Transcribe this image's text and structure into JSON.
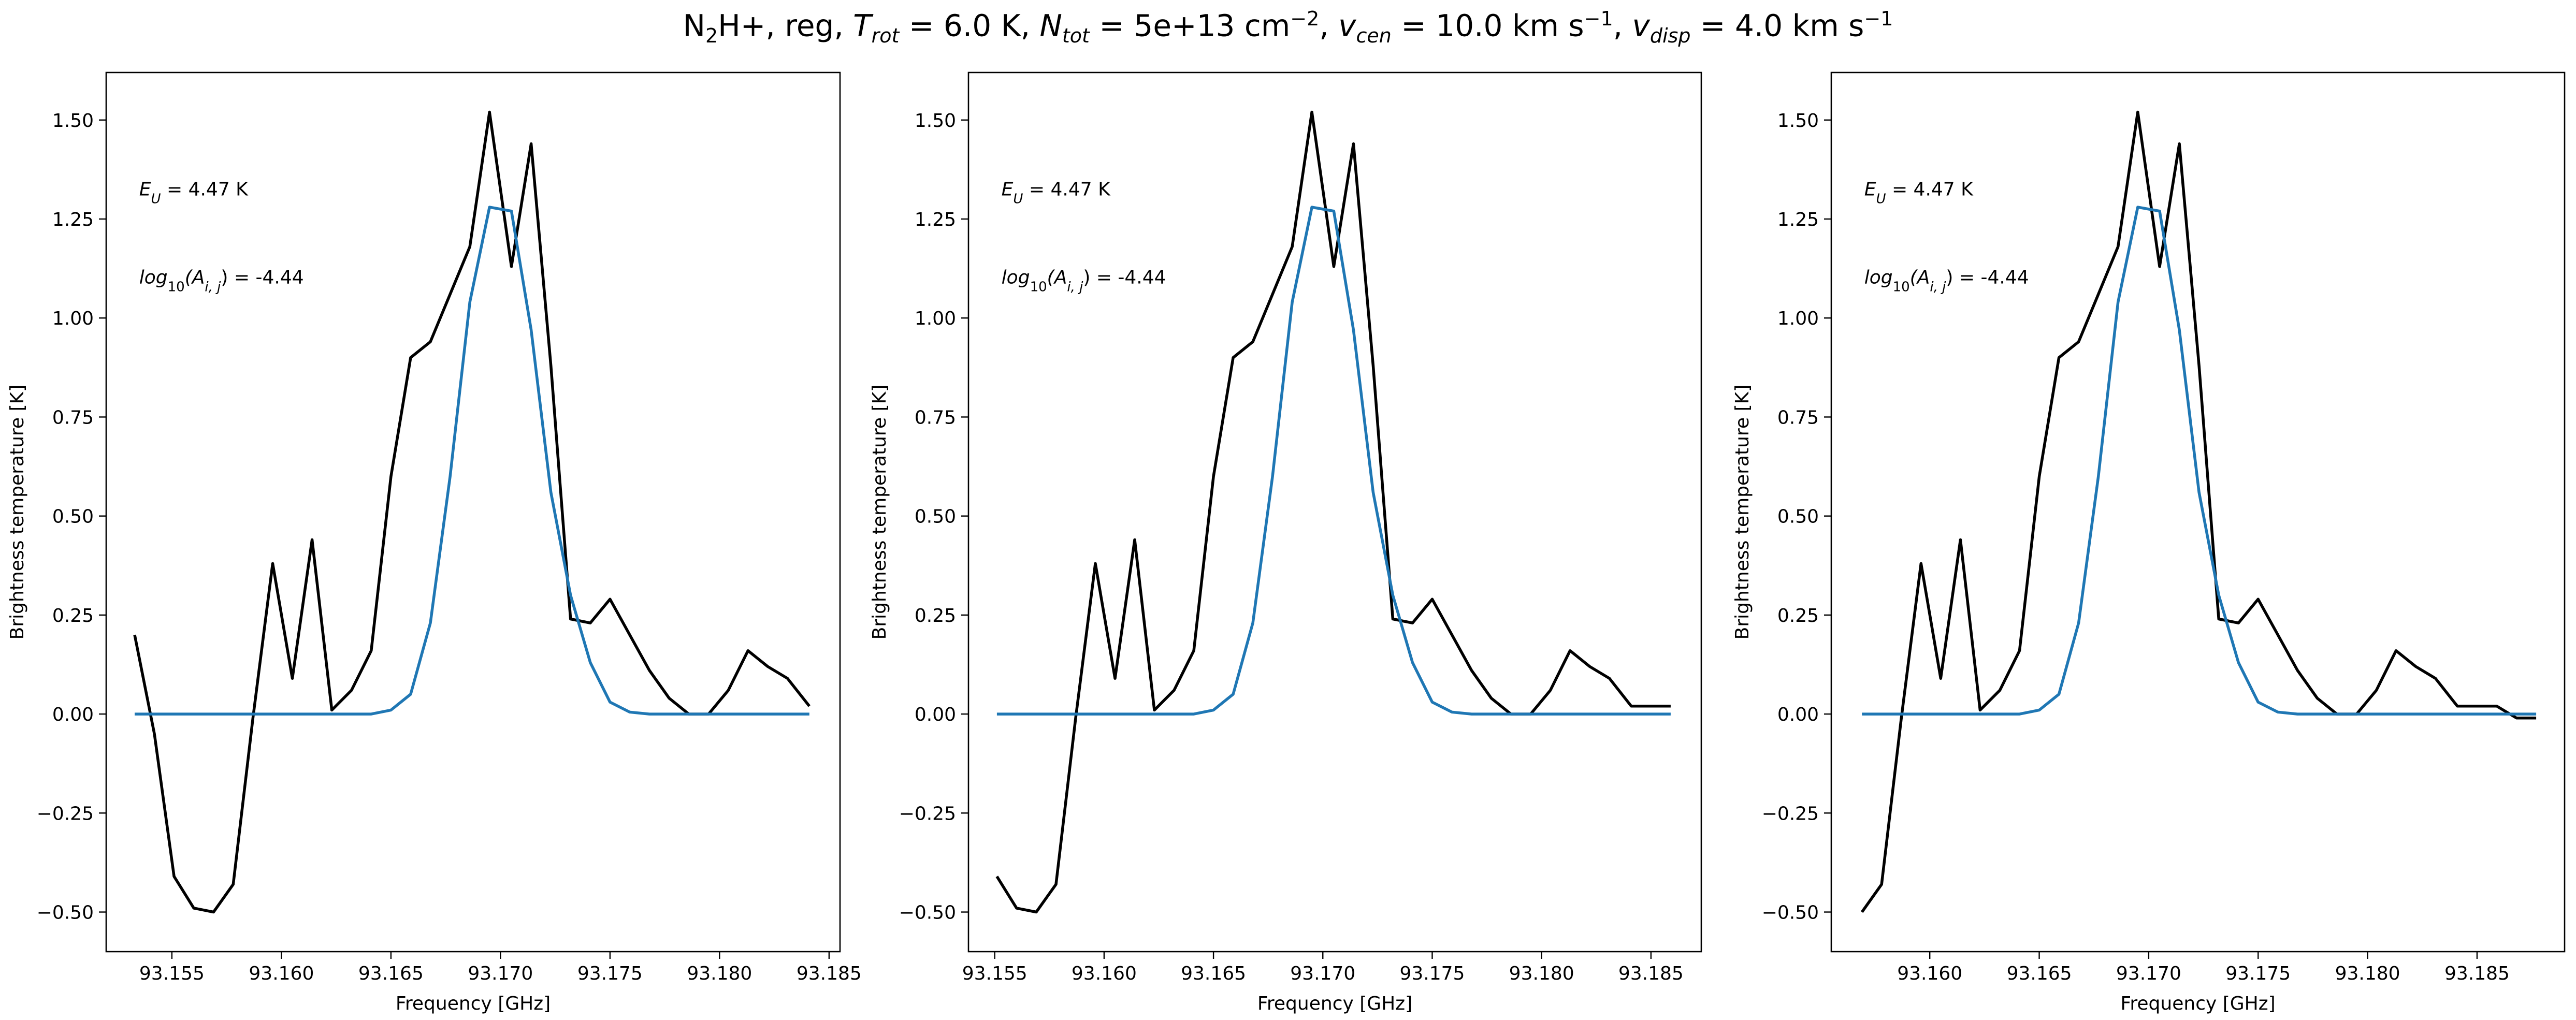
{
  "figure": {
    "title": {
      "molecule_main": "N",
      "molecule_sub": "2",
      "molecule_rest": "H+",
      "sep1": ", reg, ",
      "trot_sym": "T",
      "trot_sub": "rot",
      "trot_value": " =  6.0 K, ",
      "ntot_sym": "N",
      "ntot_sub": "tot",
      "ntot_value": " =  5e+13 cm",
      "ntot_exp": "−2",
      "vcen_sep": ", ",
      "vcen_sym": "v",
      "vcen_sub": "cen",
      "vcen_value": " =  10.0 km s",
      "vcen_exp": "−1",
      "vdisp_sep": ", ",
      "vdisp_sym": "v",
      "vdisp_sub": "disp",
      "vdisp_value": " =  4.0 km s",
      "vdisp_exp": "−1"
    }
  },
  "colors": {
    "observed": "#000000",
    "model": "#1f77b4"
  },
  "chart_data": [
    {
      "type": "line",
      "xlabel": "Frequency [GHz]",
      "ylabel": "Brightness temperature [K]",
      "xlim": [
        93.152,
        93.1855
      ],
      "ylim": [
        -0.6,
        1.62
      ],
      "xticks": [
        93.155,
        93.16,
        93.165,
        93.17,
        93.175,
        93.18,
        93.185
      ],
      "xtick_labels": [
        "93.155",
        "93.160",
        "93.165",
        "93.170",
        "93.175",
        "93.180",
        "93.185"
      ],
      "yticks": [
        -0.5,
        -0.25,
        0.0,
        0.25,
        0.5,
        0.75,
        1.0,
        1.25,
        1.5
      ],
      "ytick_labels": [
        "−0.50",
        "−0.25",
        "0.00",
        "0.25",
        "0.50",
        "0.75",
        "1.00",
        "1.25",
        "1.50"
      ],
      "annotations": [
        {
          "sym": "E",
          "sub": "U",
          "value": " = 4.47 K",
          "pos": [
            0.045,
            0.86
          ]
        },
        {
          "sym": "log",
          "sub": "10",
          "mid": "(A",
          "sub2": "i, j",
          "value": ") = -4.44",
          "pos": [
            0.045,
            0.76
          ]
        }
      ],
      "series": [
        {
          "role": "observed",
          "x": [
            93.1533,
            93.1542,
            93.1551,
            93.156,
            93.1569,
            93.1578,
            93.1587,
            93.1596,
            93.1605,
            93.1614,
            93.1623,
            93.1632,
            93.1641,
            93.165,
            93.1659,
            93.1668,
            93.1677,
            93.1686,
            93.1695,
            93.1705,
            93.1714,
            93.1723,
            93.1732,
            93.1741,
            93.175,
            93.1759,
            93.1768,
            93.1777,
            93.1786,
            93.1795,
            93.1804,
            93.1813,
            93.1822,
            93.1831,
            93.1841
          ],
          "y": [
            0.2,
            -0.05,
            -0.41,
            -0.49,
            -0.5,
            -0.43,
            -0.01,
            0.38,
            0.09,
            0.44,
            0.01,
            0.06,
            0.16,
            0.6,
            0.9,
            0.94,
            1.06,
            1.18,
            1.52,
            1.13,
            1.44,
            0.88,
            0.24,
            0.23,
            0.29,
            0.2,
            0.11,
            0.04,
            0.0,
            0.0,
            0.06,
            0.16,
            0.12,
            0.09,
            0.02
          ]
        },
        {
          "role": "model",
          "x": [
            93.1533,
            93.1542,
            93.1551,
            93.156,
            93.1569,
            93.1578,
            93.1587,
            93.1596,
            93.1605,
            93.1614,
            93.1623,
            93.1632,
            93.1641,
            93.165,
            93.1659,
            93.1668,
            93.1677,
            93.1686,
            93.1695,
            93.1705,
            93.1714,
            93.1723,
            93.1732,
            93.1741,
            93.175,
            93.1759,
            93.1768,
            93.1777,
            93.1786,
            93.1795,
            93.1804,
            93.1813,
            93.1822,
            93.1831,
            93.1841
          ],
          "y": [
            0,
            0,
            0,
            0,
            0,
            0,
            0,
            0,
            0,
            0,
            0,
            0,
            0,
            0.01,
            0.05,
            0.23,
            0.6,
            1.04,
            1.28,
            1.27,
            0.97,
            0.56,
            0.3,
            0.13,
            0.03,
            0.005,
            0,
            0,
            0,
            0,
            0,
            0,
            0,
            0,
            0
          ]
        }
      ]
    },
    {
      "type": "line",
      "xlabel": "Frequency [GHz]",
      "ylabel": "Brightness temperature [K]",
      "xlim": [
        93.1538,
        93.1873
      ],
      "ylim": [
        -0.6,
        1.62
      ],
      "xticks": [
        93.155,
        93.16,
        93.165,
        93.17,
        93.175,
        93.18,
        93.185
      ],
      "xtick_labels": [
        "93.155",
        "93.160",
        "93.165",
        "93.170",
        "93.175",
        "93.180",
        "93.185"
      ],
      "yticks": [
        -0.5,
        -0.25,
        0.0,
        0.25,
        0.5,
        0.75,
        1.0,
        1.25,
        1.5
      ],
      "ytick_labels": [
        "−0.50",
        "−0.25",
        "0.00",
        "0.25",
        "0.50",
        "0.75",
        "1.00",
        "1.25",
        "1.50"
      ],
      "annotations": [
        {
          "sym": "E",
          "sub": "U",
          "value": " = 4.47 K",
          "pos": [
            0.045,
            0.86
          ]
        },
        {
          "sym": "log",
          "sub": "10",
          "mid": "(A",
          "sub2": "i, j",
          "value": ") = -4.44",
          "pos": [
            0.045,
            0.76
          ]
        }
      ],
      "series": [
        {
          "role": "observed",
          "x": [
            93.1551,
            93.156,
            93.1569,
            93.1578,
            93.1587,
            93.1596,
            93.1605,
            93.1614,
            93.1623,
            93.1632,
            93.1641,
            93.165,
            93.1659,
            93.1668,
            93.1677,
            93.1686,
            93.1695,
            93.1705,
            93.1714,
            93.1723,
            93.1732,
            93.1741,
            93.175,
            93.1759,
            93.1768,
            93.1777,
            93.1786,
            93.1795,
            93.1804,
            93.1813,
            93.1822,
            93.1831,
            93.1841,
            93.185,
            93.1859
          ],
          "y": [
            -0.41,
            -0.49,
            -0.5,
            -0.43,
            -0.01,
            0.38,
            0.09,
            0.44,
            0.01,
            0.06,
            0.16,
            0.6,
            0.9,
            0.94,
            1.06,
            1.18,
            1.52,
            1.13,
            1.44,
            0.88,
            0.24,
            0.23,
            0.29,
            0.2,
            0.11,
            0.04,
            0.0,
            0.0,
            0.06,
            0.16,
            0.12,
            0.09,
            0.02,
            0.02,
            0.02
          ]
        },
        {
          "role": "model",
          "x": [
            93.1551,
            93.156,
            93.1569,
            93.1578,
            93.1587,
            93.1596,
            93.1605,
            93.1614,
            93.1623,
            93.1632,
            93.1641,
            93.165,
            93.1659,
            93.1668,
            93.1677,
            93.1686,
            93.1695,
            93.1705,
            93.1714,
            93.1723,
            93.1732,
            93.1741,
            93.175,
            93.1759,
            93.1768,
            93.1777,
            93.1786,
            93.1795,
            93.1804,
            93.1813,
            93.1822,
            93.1831,
            93.1841,
            93.185,
            93.1859
          ],
          "y": [
            0,
            0,
            0,
            0,
            0,
            0,
            0,
            0,
            0,
            0,
            0,
            0.01,
            0.05,
            0.23,
            0.6,
            1.04,
            1.28,
            1.27,
            0.97,
            0.56,
            0.3,
            0.13,
            0.03,
            0.005,
            0,
            0,
            0,
            0,
            0,
            0,
            0,
            0,
            0,
            0,
            0
          ]
        }
      ]
    },
    {
      "type": "line",
      "xlabel": "Frequency [GHz]",
      "ylabel": "Brightness temperature [K]",
      "xlim": [
        93.1555,
        93.189
      ],
      "ylim": [
        -0.6,
        1.62
      ],
      "xticks": [
        93.16,
        93.165,
        93.17,
        93.175,
        93.18,
        93.185
      ],
      "xtick_labels": [
        "93.160",
        "93.165",
        "93.170",
        "93.175",
        "93.180",
        "93.185"
      ],
      "yticks": [
        -0.5,
        -0.25,
        0.0,
        0.25,
        0.5,
        0.75,
        1.0,
        1.25,
        1.5
      ],
      "ytick_labels": [
        "−0.50",
        "−0.25",
        "0.00",
        "0.25",
        "0.50",
        "0.75",
        "1.00",
        "1.25",
        "1.50"
      ],
      "annotations": [
        {
          "sym": "E",
          "sub": "U",
          "value": " = 4.47 K",
          "pos": [
            0.045,
            0.86
          ]
        },
        {
          "sym": "log",
          "sub": "10",
          "mid": "(A",
          "sub2": "i, j",
          "value": ") = -4.44",
          "pos": [
            0.045,
            0.76
          ]
        }
      ],
      "series": [
        {
          "role": "observed",
          "x": [
            93.1569,
            93.1578,
            93.1587,
            93.1596,
            93.1605,
            93.1614,
            93.1623,
            93.1632,
            93.1641,
            93.165,
            93.1659,
            93.1668,
            93.1677,
            93.1686,
            93.1695,
            93.1705,
            93.1714,
            93.1723,
            93.1732,
            93.1741,
            93.175,
            93.1759,
            93.1768,
            93.1777,
            93.1786,
            93.1795,
            93.1804,
            93.1813,
            93.1822,
            93.1831,
            93.1841,
            93.185,
            93.1859,
            93.1868,
            93.1877
          ],
          "y": [
            -0.5,
            -0.43,
            -0.01,
            0.38,
            0.09,
            0.44,
            0.01,
            0.06,
            0.16,
            0.6,
            0.9,
            0.94,
            1.06,
            1.18,
            1.52,
            1.13,
            1.44,
            0.88,
            0.24,
            0.23,
            0.29,
            0.2,
            0.11,
            0.04,
            0.0,
            0.0,
            0.06,
            0.16,
            0.12,
            0.09,
            0.02,
            0.02,
            0.02,
            -0.01,
            -0.01
          ]
        },
        {
          "role": "model",
          "x": [
            93.1569,
            93.1578,
            93.1587,
            93.1596,
            93.1605,
            93.1614,
            93.1623,
            93.1632,
            93.1641,
            93.165,
            93.1659,
            93.1668,
            93.1677,
            93.1686,
            93.1695,
            93.1705,
            93.1714,
            93.1723,
            93.1732,
            93.1741,
            93.175,
            93.1759,
            93.1768,
            93.1777,
            93.1786,
            93.1795,
            93.1804,
            93.1813,
            93.1822,
            93.1831,
            93.1841,
            93.185,
            93.1859,
            93.1868,
            93.1877
          ],
          "y": [
            0,
            0,
            0,
            0,
            0,
            0,
            0,
            0,
            0,
            0.01,
            0.05,
            0.23,
            0.6,
            1.04,
            1.28,
            1.27,
            0.97,
            0.56,
            0.3,
            0.13,
            0.03,
            0.005,
            0,
            0,
            0,
            0,
            0,
            0,
            0,
            0,
            0,
            0,
            0,
            0,
            0
          ]
        }
      ]
    }
  ]
}
